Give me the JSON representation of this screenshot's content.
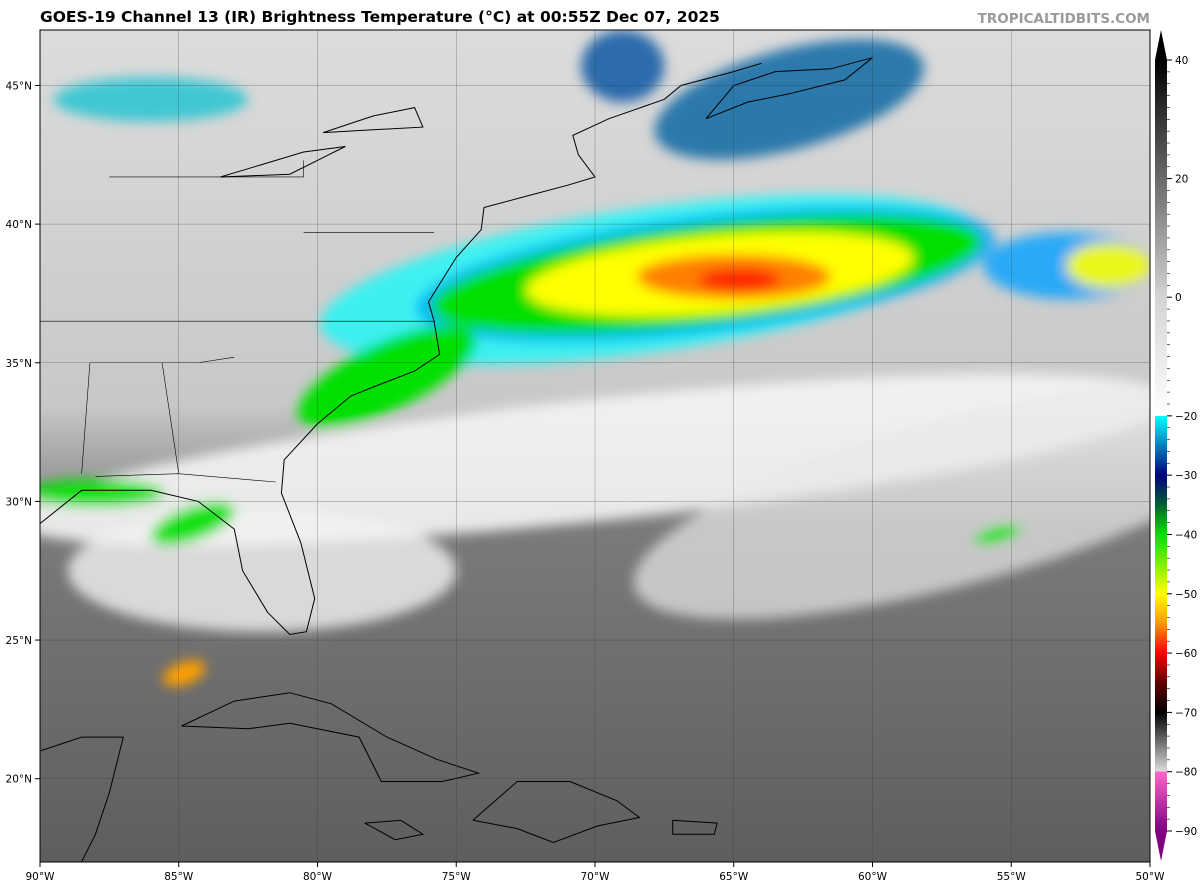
{
  "title": "GOES-19 Channel 13 (IR) Brightness Temperature (°C) at 00:55Z Dec 07, 2025",
  "brand": "TROPICALTIDBITS.COM",
  "map": {
    "lon_range": [
      -90,
      -50
    ],
    "lat_range": [
      17,
      47
    ],
    "lon_ticks": [
      "90°W",
      "85°W",
      "80°W",
      "75°W",
      "70°W",
      "65°W",
      "60°W",
      "55°W",
      "50°W"
    ],
    "lat_ticks": [
      "45°N",
      "40°N",
      "35°N",
      "30°N",
      "25°N",
      "20°N"
    ],
    "gridlines": true
  },
  "colorbar": {
    "units": "°C",
    "range": [
      -90,
      40
    ],
    "ticks": [
      "40",
      "20",
      "0",
      "−20",
      "−30",
      "−40",
      "−50",
      "−60",
      "−70",
      "−80",
      "−90"
    ],
    "extend": "both",
    "colors": {
      "warm": "#000000",
      "zero": "#d0d0d0",
      "m20": "#00ffff",
      "m30": "#000080",
      "m40": "#00e000",
      "m50": "#ffff00",
      "m60": "#ff0000",
      "m70": "#000000",
      "m80": "#ff66cc",
      "m90": "#800080"
    }
  }
}
